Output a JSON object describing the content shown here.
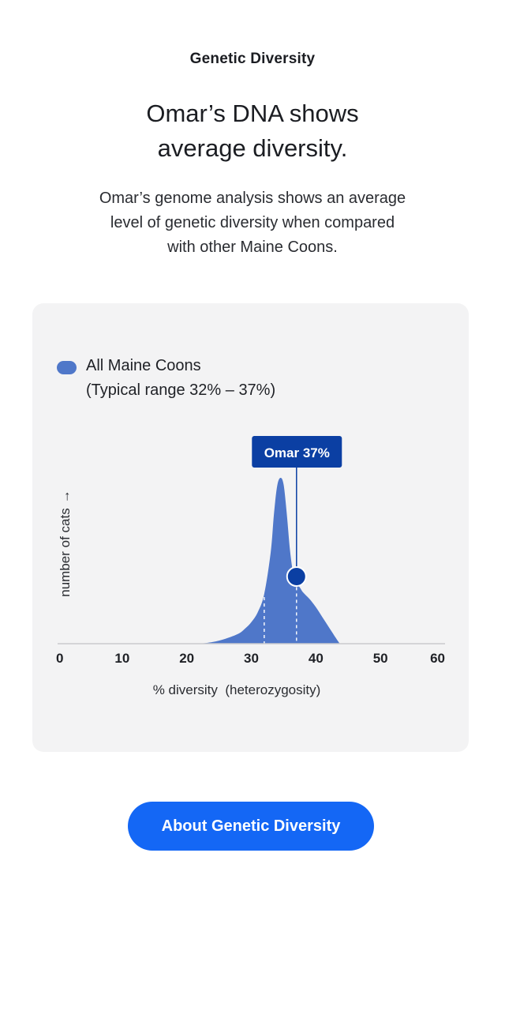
{
  "eyebrow": "Genetic Diversity",
  "headline": [
    "Omar’s DNA shows",
    "average diversity."
  ],
  "body": [
    "Omar’s genome analysis shows an average",
    "level of genetic diversity when compared",
    "with other Maine Coons."
  ],
  "legend": {
    "label": "All Maine Coons",
    "range": "(Typical range 32% – 37%)",
    "color": "#4f77c9"
  },
  "chart_data": {
    "type": "area",
    "series": [
      {
        "name": "All Maine Coons",
        "x": [
          22,
          24,
          26,
          28,
          29,
          30,
          31,
          32,
          33,
          33.5,
          34,
          34.5,
          35,
          35.5,
          36,
          36.5,
          37,
          37.5,
          38,
          39,
          40,
          41,
          42,
          43,
          43.7
        ],
        "values": [
          0,
          0.01,
          0.03,
          0.06,
          0.09,
          0.13,
          0.19,
          0.3,
          0.55,
          0.78,
          0.95,
          1.0,
          0.96,
          0.78,
          0.56,
          0.42,
          0.36,
          0.34,
          0.31,
          0.27,
          0.22,
          0.16,
          0.1,
          0.04,
          0
        ]
      }
    ],
    "typical_range": [
      32,
      37
    ],
    "marker": {
      "label": "Omar 37%",
      "x": 37,
      "color": "#0b3fa3"
    },
    "xticks": [
      0,
      10,
      20,
      30,
      40,
      50,
      60
    ],
    "xlim": [
      0,
      60
    ],
    "xlabel": "% diversity  (heterozygosity)",
    "ylabel": "number of cats",
    "ylabel_arrow": "→",
    "grid": false,
    "legend_position": "top-left"
  },
  "cta": {
    "label": "About Genetic Diversity",
    "color": "#1467f5"
  }
}
